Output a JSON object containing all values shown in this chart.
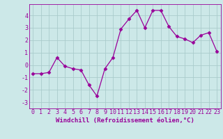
{
  "x": [
    0,
    1,
    2,
    3,
    4,
    5,
    6,
    7,
    8,
    9,
    10,
    11,
    12,
    13,
    14,
    15,
    16,
    17,
    18,
    19,
    20,
    21,
    22,
    23
  ],
  "y": [
    -0.7,
    -0.7,
    -0.6,
    0.6,
    -0.1,
    -0.3,
    -0.4,
    -1.6,
    -2.5,
    -0.3,
    0.6,
    2.9,
    3.7,
    4.4,
    3.0,
    4.4,
    4.4,
    3.1,
    2.3,
    2.1,
    1.8,
    2.4,
    2.6,
    1.1
  ],
  "line_color": "#990099",
  "marker": "D",
  "marker_size": 2.5,
  "bg_color": "#cce8e8",
  "grid_color": "#aacccc",
  "xlabel": "Windchill (Refroidissement éolien,°C)",
  "xlabel_fontsize": 6.5,
  "tick_fontsize": 6.0,
  "ylim": [
    -3.5,
    4.9
  ],
  "xlim": [
    -0.5,
    23.5
  ],
  "yticks": [
    -3,
    -2,
    -1,
    0,
    1,
    2,
    3,
    4
  ],
  "xticks": [
    0,
    1,
    2,
    3,
    4,
    5,
    6,
    7,
    8,
    9,
    10,
    11,
    12,
    13,
    14,
    15,
    16,
    17,
    18,
    19,
    20,
    21,
    22,
    23
  ]
}
